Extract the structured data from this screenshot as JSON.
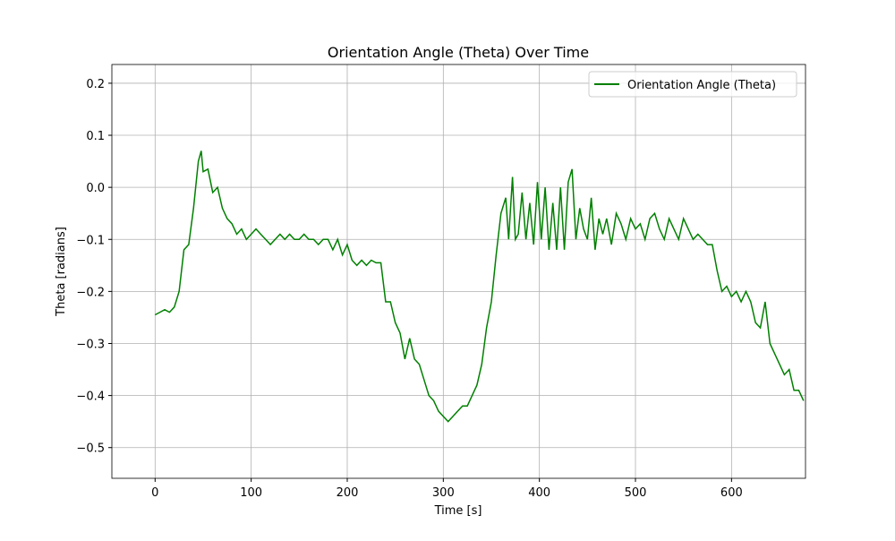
{
  "chart_data": {
    "type": "line",
    "title": "Orientation Angle (Theta) Over Time",
    "xlabel": "Time [s]",
    "ylabel": "Theta [radians]",
    "x": [
      0,
      5,
      10,
      15,
      20,
      25,
      30,
      35,
      40,
      45,
      48,
      50,
      55,
      60,
      65,
      70,
      75,
      80,
      85,
      90,
      95,
      100,
      105,
      110,
      115,
      120,
      125,
      130,
      135,
      140,
      145,
      150,
      155,
      160,
      165,
      170,
      175,
      180,
      185,
      190,
      195,
      200,
      205,
      210,
      215,
      220,
      225,
      230,
      235,
      240,
      245,
      250,
      255,
      260,
      265,
      270,
      275,
      280,
      285,
      290,
      295,
      300,
      305,
      310,
      315,
      320,
      325,
      330,
      335,
      340,
      345,
      350,
      355,
      360,
      365,
      368,
      372,
      375,
      378,
      382,
      386,
      390,
      394,
      398,
      402,
      406,
      410,
      414,
      418,
      422,
      426,
      430,
      434,
      438,
      442,
      446,
      450,
      454,
      458,
      462,
      466,
      470,
      475,
      480,
      485,
      490,
      495,
      500,
      505,
      510,
      515,
      520,
      525,
      530,
      535,
      540,
      545,
      550,
      555,
      560,
      565,
      570,
      575,
      580,
      585,
      590,
      595,
      600,
      605,
      610,
      615,
      620,
      625,
      630,
      635,
      640,
      645,
      650,
      655,
      660,
      665,
      670,
      675
    ],
    "series": [
      {
        "name": "Orientation Angle (Theta)",
        "color": "#008000",
        "values": [
          -0.245,
          -0.24,
          -0.235,
          -0.24,
          -0.23,
          -0.2,
          -0.12,
          -0.11,
          -0.04,
          0.05,
          0.07,
          0.03,
          0.035,
          -0.01,
          0.0,
          -0.04,
          -0.06,
          -0.07,
          -0.09,
          -0.08,
          -0.1,
          -0.09,
          -0.08,
          -0.09,
          -0.1,
          -0.11,
          -0.1,
          -0.09,
          -0.1,
          -0.09,
          -0.1,
          -0.1,
          -0.09,
          -0.1,
          -0.1,
          -0.11,
          -0.1,
          -0.1,
          -0.12,
          -0.1,
          -0.13,
          -0.11,
          -0.14,
          -0.15,
          -0.14,
          -0.15,
          -0.14,
          -0.145,
          -0.145,
          -0.22,
          -0.22,
          -0.26,
          -0.28,
          -0.33,
          -0.29,
          -0.33,
          -0.34,
          -0.37,
          -0.4,
          -0.41,
          -0.43,
          -0.44,
          -0.45,
          -0.44,
          -0.43,
          -0.42,
          -0.42,
          -0.4,
          -0.38,
          -0.34,
          -0.27,
          -0.22,
          -0.13,
          -0.05,
          -0.02,
          -0.1,
          0.02,
          -0.1,
          -0.09,
          -0.01,
          -0.1,
          -0.03,
          -0.11,
          0.01,
          -0.1,
          0.0,
          -0.12,
          -0.03,
          -0.12,
          0.0,
          -0.12,
          0.01,
          0.035,
          -0.1,
          -0.04,
          -0.08,
          -0.1,
          -0.02,
          -0.12,
          -0.06,
          -0.09,
          -0.06,
          -0.11,
          -0.05,
          -0.07,
          -0.1,
          -0.06,
          -0.08,
          -0.07,
          -0.1,
          -0.06,
          -0.05,
          -0.08,
          -0.1,
          -0.06,
          -0.08,
          -0.1,
          -0.06,
          -0.08,
          -0.1,
          -0.09,
          -0.1,
          -0.11,
          -0.11,
          -0.16,
          -0.2,
          -0.19,
          -0.21,
          -0.2,
          -0.22,
          -0.2,
          -0.22,
          -0.26,
          -0.27,
          -0.22,
          -0.3,
          -0.32,
          -0.34,
          -0.36,
          -0.35,
          -0.39,
          -0.39,
          -0.41
        ]
      }
    ],
    "xlim": [
      -45,
      677
    ],
    "ylim": [
      -0.559,
      0.236
    ],
    "xticks": [
      0,
      100,
      200,
      300,
      400,
      500,
      600
    ],
    "yticks": [
      {
        "value": -0.5,
        "label": "−0.5"
      },
      {
        "value": -0.4,
        "label": "−0.4"
      },
      {
        "value": -0.3,
        "label": "−0.3"
      },
      {
        "value": -0.2,
        "label": "−0.2"
      },
      {
        "value": -0.1,
        "label": "−0.1"
      },
      {
        "value": 0,
        "label": "0.0"
      },
      0.1,
      0.2
    ],
    "grid": true,
    "legend": "upper right"
  }
}
